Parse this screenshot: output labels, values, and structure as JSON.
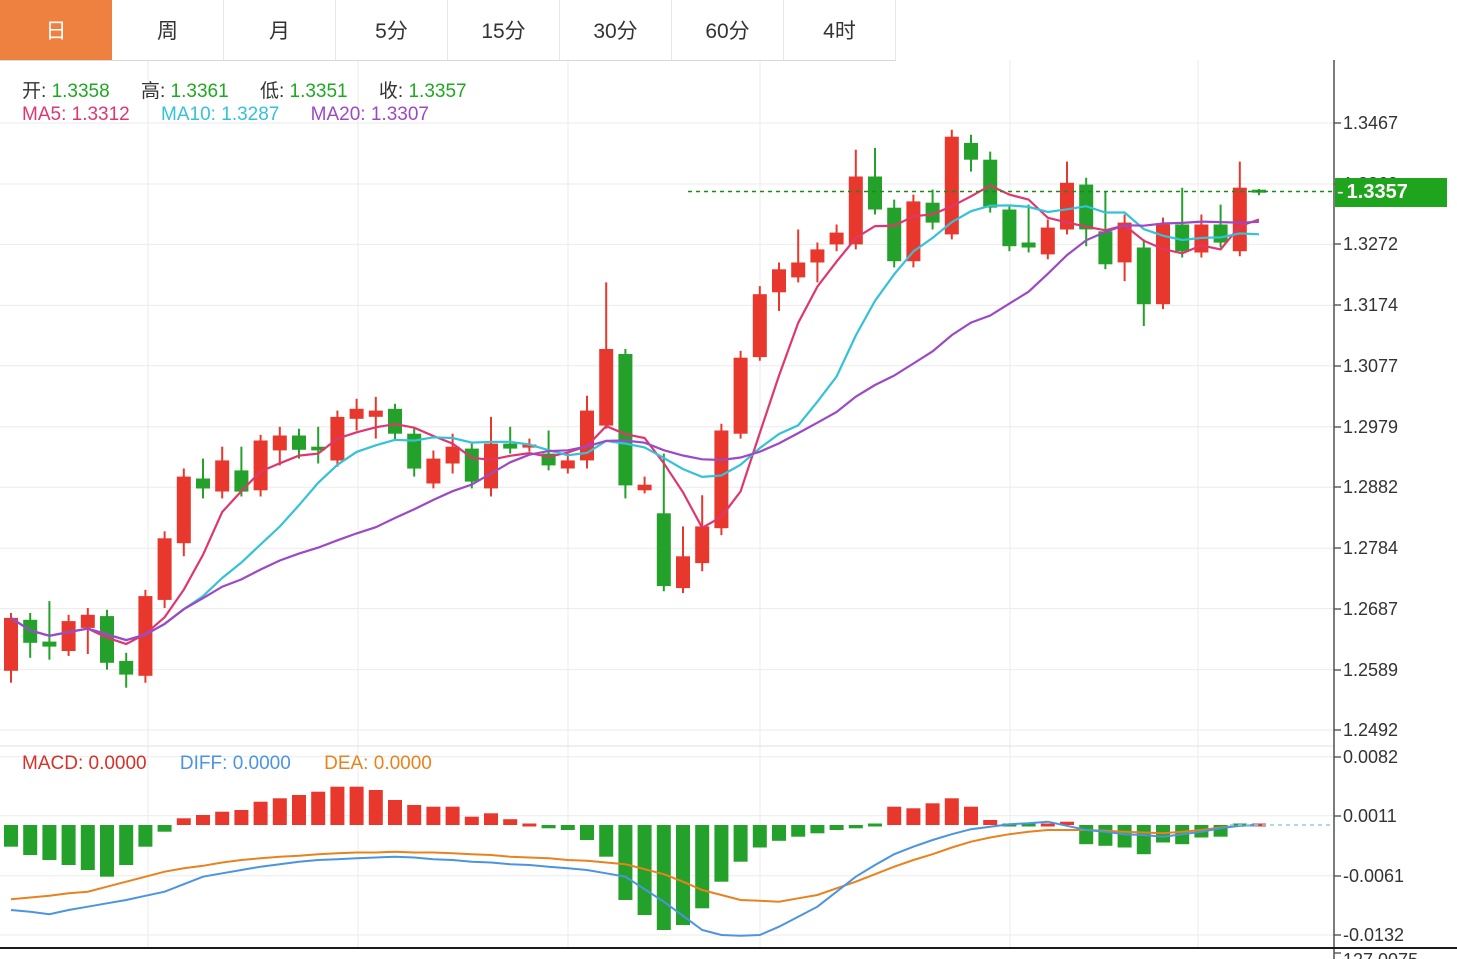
{
  "tabs": {
    "items": [
      {
        "label": "日",
        "active": true
      },
      {
        "label": "周",
        "active": false
      },
      {
        "label": "月",
        "active": false
      },
      {
        "label": "5分",
        "active": false
      },
      {
        "label": "15分",
        "active": false
      },
      {
        "label": "30分",
        "active": false
      },
      {
        "label": "60分",
        "active": false
      },
      {
        "label": "4时",
        "active": false
      }
    ]
  },
  "ohlc_bar": {
    "open_label": "开:",
    "open": "1.3358",
    "high_label": "高:",
    "high": "1.3361",
    "low_label": "低:",
    "low": "1.3351",
    "close_label": "收:",
    "close": "1.3357"
  },
  "ma_bar": {
    "ma5_label": "MA5:",
    "ma5": "1.3312",
    "ma10_label": "MA10:",
    "ma10": "1.3287",
    "ma20_label": "MA20:",
    "ma20": "1.3307"
  },
  "macd_bar": {
    "macd_label": "MACD:",
    "macd": "0.0000",
    "diff_label": "DIFF:",
    "diff": "0.0000",
    "dea_label": "DEA:",
    "dea": "0.0000"
  },
  "price_tag": {
    "value": "1.3357",
    "notch": "-"
  },
  "bottom_partial_label": "127.0075",
  "colors": {
    "accent_tab": "#ef8140",
    "up_red": "#e8372c",
    "down_green": "#24a12a",
    "ma5": "#e0366f",
    "ma10": "#35c2d8",
    "ma20": "#9c49c6",
    "value_green": "#1fa821",
    "macd_red": "#d63228",
    "diff_blue": "#4b94e0",
    "dea_orange": "#e8821e",
    "tag_green": "#1fa41d",
    "current_line_green": "#1c8a1c",
    "macd_zero_dash": "#8fd0dd",
    "grid": "#ebebeb",
    "axis": "#555555"
  },
  "chart_data": {
    "type": "candlestick+macd",
    "legend": {
      "note": "red = up candle, green = down candle (CN convention)"
    },
    "price_panel": {
      "current_price": 1.3357,
      "axis_tick_labels": [
        "1.3467",
        "1.3369",
        "1.3272",
        "1.3174",
        "1.3077",
        "1.2979",
        "1.2882",
        "1.2784",
        "1.2687",
        "1.2589",
        "1.2492"
      ],
      "axis_tick_values": [
        1.3467,
        1.3369,
        1.3272,
        1.3174,
        1.3077,
        1.2979,
        1.2882,
        1.2784,
        1.2687,
        1.2589,
        1.2492
      ],
      "ma_periods": [
        5,
        10,
        20
      ],
      "candles_ohlc": [
        [
          1.2587,
          1.268,
          1.2568,
          1.2672
        ],
        [
          1.2669,
          1.268,
          1.2608,
          1.2632
        ],
        [
          1.2634,
          1.2699,
          1.2605,
          1.2626
        ],
        [
          1.2619,
          1.2677,
          1.2611,
          1.2667
        ],
        [
          1.2656,
          1.2688,
          1.2614,
          1.2677
        ],
        [
          1.2675,
          1.2685,
          1.2589,
          1.26
        ],
        [
          1.2603,
          1.2616,
          1.256,
          1.2581
        ],
        [
          1.2579,
          1.2717,
          1.2568,
          1.2707
        ],
        [
          1.2701,
          1.2811,
          1.2688,
          1.28
        ],
        [
          1.2792,
          1.2912,
          1.2771,
          1.2899
        ],
        [
          1.2896,
          1.2928,
          1.2864,
          1.288
        ],
        [
          1.2875,
          1.2947,
          1.2864,
          1.2925
        ],
        [
          1.2909,
          1.2947,
          1.2867,
          1.2875
        ],
        [
          1.2877,
          1.2966,
          1.2867,
          1.2957
        ],
        [
          1.2941,
          1.2979,
          1.2917,
          1.2965
        ],
        [
          1.2965,
          1.2976,
          1.2928,
          1.2942
        ],
        [
          1.2947,
          1.2979,
          1.292,
          1.2941
        ],
        [
          1.2925,
          1.3005,
          1.2915,
          1.2995
        ],
        [
          1.2992,
          1.3024,
          1.2973,
          1.3008
        ],
        [
          1.2995,
          1.3027,
          1.296,
          1.3005
        ],
        [
          1.3008,
          1.3016,
          1.2957,
          1.2968
        ],
        [
          1.2968,
          1.2979,
          1.2899,
          1.2912
        ],
        [
          1.2888,
          1.2941,
          1.288,
          1.2928
        ],
        [
          1.292,
          1.2968,
          1.2904,
          1.2947
        ],
        [
          1.2944,
          1.2952,
          1.288,
          1.2891
        ],
        [
          1.288,
          1.2995,
          1.2867,
          1.2952
        ],
        [
          1.2952,
          1.2979,
          1.2936,
          1.2944
        ],
        [
          1.2946,
          1.296,
          1.2939,
          1.295
        ],
        [
          1.2936,
          1.2973,
          1.2909,
          1.2917
        ],
        [
          1.2912,
          1.2936,
          1.2904,
          1.2925
        ],
        [
          1.2925,
          1.3029,
          1.2912,
          1.3005
        ],
        [
          1.2981,
          1.3211,
          1.2976,
          1.3104
        ],
        [
          1.3096,
          1.3104,
          1.2864,
          1.2885
        ],
        [
          1.2877,
          1.2899,
          1.2872,
          1.2886
        ],
        [
          1.284,
          1.2936,
          1.2715,
          1.2723
        ],
        [
          1.272,
          1.2819,
          1.2712,
          1.2771
        ],
        [
          1.276,
          1.2869,
          1.2747,
          1.2819
        ],
        [
          1.2816,
          1.2984,
          1.2805,
          1.2973
        ],
        [
          1.2968,
          1.3101,
          1.296,
          1.309
        ],
        [
          1.3091,
          1.3205,
          1.3085,
          1.3192
        ],
        [
          1.3195,
          1.3243,
          1.3165,
          1.3232
        ],
        [
          1.3219,
          1.3296,
          1.3211,
          1.3243
        ],
        [
          1.3243,
          1.3275,
          1.3211,
          1.3264
        ],
        [
          1.3272,
          1.3304,
          1.3261,
          1.3291
        ],
        [
          1.3272,
          1.3424,
          1.3264,
          1.3381
        ],
        [
          1.3381,
          1.3427,
          1.332,
          1.3328
        ],
        [
          1.3331,
          1.3344,
          1.3235,
          1.3245
        ],
        [
          1.3245,
          1.3352,
          1.3235,
          1.3341
        ],
        [
          1.3339,
          1.336,
          1.3296,
          1.3307
        ],
        [
          1.3288,
          1.3456,
          1.328,
          1.3445
        ],
        [
          1.3435,
          1.3448,
          1.3389,
          1.3408
        ],
        [
          1.3408,
          1.3421,
          1.3323,
          1.3331
        ],
        [
          1.3328,
          1.3336,
          1.3261,
          1.3269
        ],
        [
          1.3275,
          1.3336,
          1.3259,
          1.3267
        ],
        [
          1.3256,
          1.3312,
          1.3248,
          1.3299
        ],
        [
          1.3296,
          1.3405,
          1.3288,
          1.3371
        ],
        [
          1.3368,
          1.3379,
          1.3269,
          1.3296
        ],
        [
          1.3293,
          1.3357,
          1.3232,
          1.324
        ],
        [
          1.3243,
          1.332,
          1.3213,
          1.3307
        ],
        [
          1.3267,
          1.328,
          1.3141,
          1.3176
        ],
        [
          1.3176,
          1.3315,
          1.3168,
          1.3304
        ],
        [
          1.3304,
          1.3363,
          1.3251,
          1.3261
        ],
        [
          1.3259,
          1.332,
          1.3251,
          1.3304
        ],
        [
          1.3304,
          1.3336,
          1.3267,
          1.3275
        ],
        [
          1.3261,
          1.3405,
          1.3253,
          1.3363
        ],
        [
          1.3358,
          1.3361,
          1.3351,
          1.3357
        ]
      ]
    },
    "macd_panel": {
      "axis_tick_labels": [
        "0.0082",
        "0.0011",
        "-0.0061",
        "-0.0132"
      ],
      "axis_tick_values": [
        0.0082,
        0.0011,
        -0.0061,
        -0.0132
      ],
      "hist": [
        -0.0026,
        -0.0036,
        -0.0042,
        -0.0048,
        -0.0054,
        -0.0062,
        -0.0048,
        -0.0026,
        -0.0008,
        0.0008,
        0.0012,
        0.0016,
        0.0018,
        0.0028,
        0.0032,
        0.0036,
        0.004,
        0.0046,
        0.0046,
        0.0042,
        0.003,
        0.0024,
        0.0022,
        0.0022,
        0.001,
        0.0014,
        0.0007,
        0.0002,
        -0.0004,
        -0.0006,
        -0.0018,
        -0.0038,
        -0.009,
        -0.0108,
        -0.0126,
        -0.012,
        -0.01,
        -0.0068,
        -0.0044,
        -0.0027,
        -0.0019,
        -0.0014,
        -0.001,
        -0.0006,
        -0.0004,
        -0.0002,
        0.0022,
        0.002,
        0.0026,
        0.0032,
        0.0022,
        0.0006,
        -0.0003,
        -0.0003,
        0.0003,
        0.0004,
        -0.0023,
        -0.0025,
        -0.0027,
        -0.0035,
        -0.0021,
        -0.0023,
        -0.0015,
        -0.0014,
        -0.0002,
        0.0
      ],
      "diff": [
        -0.0102,
        -0.0104,
        -0.0107,
        -0.0102,
        -0.0098,
        -0.0094,
        -0.009,
        -0.0085,
        -0.008,
        -0.0071,
        -0.0062,
        -0.0058,
        -0.0054,
        -0.005,
        -0.0047,
        -0.0044,
        -0.0042,
        -0.0041,
        -0.004,
        -0.0039,
        -0.0038,
        -0.0039,
        -0.0041,
        -0.0042,
        -0.0044,
        -0.0045,
        -0.0047,
        -0.0048,
        -0.005,
        -0.0052,
        -0.0054,
        -0.0058,
        -0.0062,
        -0.0077,
        -0.0092,
        -0.0109,
        -0.0126,
        -0.0132,
        -0.0133,
        -0.0132,
        -0.0122,
        -0.011,
        -0.0098,
        -0.008,
        -0.0062,
        -0.0048,
        -0.0035,
        -0.0026,
        -0.0018,
        -0.0011,
        -0.0005,
        -0.0002,
        0.0001,
        0.0002,
        0.0004,
        -0.0001,
        -0.0006,
        -0.0008,
        -0.0011,
        -0.0012,
        -0.0014,
        -0.0011,
        -0.0008,
        -0.0004,
        -0.0001,
        0.0
      ],
      "dea": [
        -0.0089,
        -0.0087,
        -0.0085,
        -0.0082,
        -0.008,
        -0.0074,
        -0.0068,
        -0.0062,
        -0.0056,
        -0.0052,
        -0.0049,
        -0.0045,
        -0.0042,
        -0.004,
        -0.0038,
        -0.0037,
        -0.0035,
        -0.0034,
        -0.0033,
        -0.0033,
        -0.0032,
        -0.0033,
        -0.0033,
        -0.0034,
        -0.0035,
        -0.0036,
        -0.0038,
        -0.0039,
        -0.004,
        -0.0042,
        -0.0043,
        -0.0045,
        -0.0047,
        -0.0053,
        -0.0059,
        -0.0068,
        -0.0078,
        -0.0084,
        -0.009,
        -0.0091,
        -0.0092,
        -0.0088,
        -0.0084,
        -0.0076,
        -0.0068,
        -0.0059,
        -0.005,
        -0.0042,
        -0.0035,
        -0.0027,
        -0.002,
        -0.0015,
        -0.0011,
        -0.0008,
        -0.0006,
        -0.0006,
        -0.0006,
        -0.0007,
        -0.0008,
        -0.0009,
        -0.001,
        -0.0008,
        -0.0006,
        -0.0003,
        -0.0001,
        0.0
      ]
    }
  }
}
